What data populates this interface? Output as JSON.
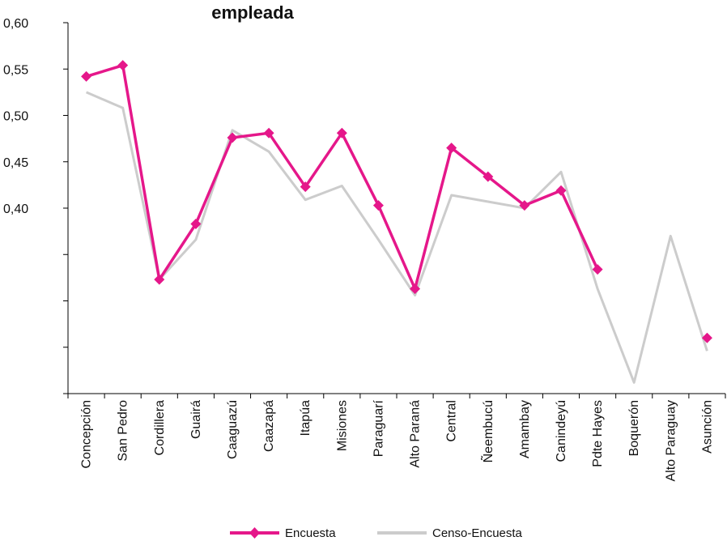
{
  "chart_data": {
    "type": "line",
    "title": "empleada",
    "xlabel": "",
    "ylabel": "",
    "ylim": [
      0.2,
      0.6
    ],
    "yticks": [
      0.6,
      0.55,
      0.5,
      0.45,
      0.4,
      0.35,
      0.3,
      0.25,
      0.2
    ],
    "ytick_labels": [
      "0,60",
      "0,55",
      "0,50",
      "0,45",
      "0,40",
      "",
      "",
      "",
      ""
    ],
    "categories": [
      "Concepción",
      "San Pedro",
      "Cordillera",
      "Guairá",
      "Caaguazú",
      "Caazapá",
      "Itapúa",
      "Misiones",
      "Paraguarí",
      "Alto Paraná",
      "Central",
      "Ñeembucú",
      "Amambay",
      "Canindeyú",
      "Pdte Hayes",
      "Boquerón",
      "Alto Paraguay",
      "Asunción"
    ],
    "series": [
      {
        "name": "Encuesta",
        "color": "#E5178A",
        "marker": "diamond",
        "values": [
          0.542,
          0.554,
          0.323,
          0.383,
          0.476,
          0.481,
          0.423,
          0.481,
          0.403,
          0.313,
          0.465,
          0.434,
          0.403,
          0.419,
          0.334,
          null,
          null,
          0.26
        ]
      },
      {
        "name": "Censo-Encuesta",
        "color": "#CCCCCC",
        "marker": "none",
        "values": [
          0.525,
          0.508,
          0.323,
          0.366,
          0.484,
          0.461,
          0.409,
          0.424,
          0.366,
          0.306,
          0.414,
          0.407,
          0.4,
          0.439,
          0.313,
          0.212,
          0.37,
          0.246
        ]
      }
    ],
    "legend_position": "bottom",
    "grid": false
  }
}
